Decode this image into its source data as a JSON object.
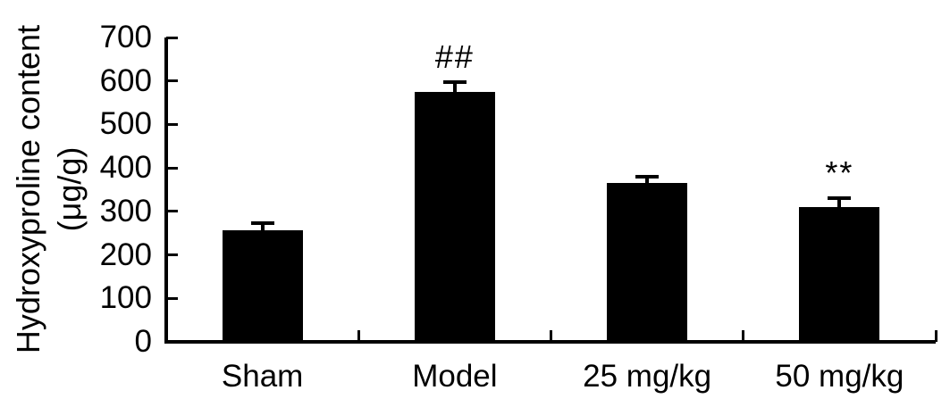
{
  "figure": {
    "ylabel_line1": "Hydroxyproline content",
    "ylabel_line2": "(μg/g)"
  },
  "chart_data": {
    "type": "bar",
    "title": "",
    "xlabel": "",
    "ylabel": "Hydroxyproline content (μg/g)",
    "categories": [
      "Sham",
      "Model",
      "25 mg/kg",
      "50 mg/kg"
    ],
    "values": [
      257,
      575,
      365,
      310
    ],
    "errors": [
      16,
      22,
      14,
      20
    ],
    "error_direction": "upper",
    "annotations": [
      "",
      "##",
      "",
      "**"
    ],
    "ylim": [
      0,
      700
    ],
    "yticks": [
      0,
      100,
      200,
      300,
      400,
      500,
      600,
      700
    ],
    "grid": false,
    "legend": null,
    "bar_color": "#000000",
    "axis_color": "#000000",
    "background_color": "#ffffff"
  }
}
